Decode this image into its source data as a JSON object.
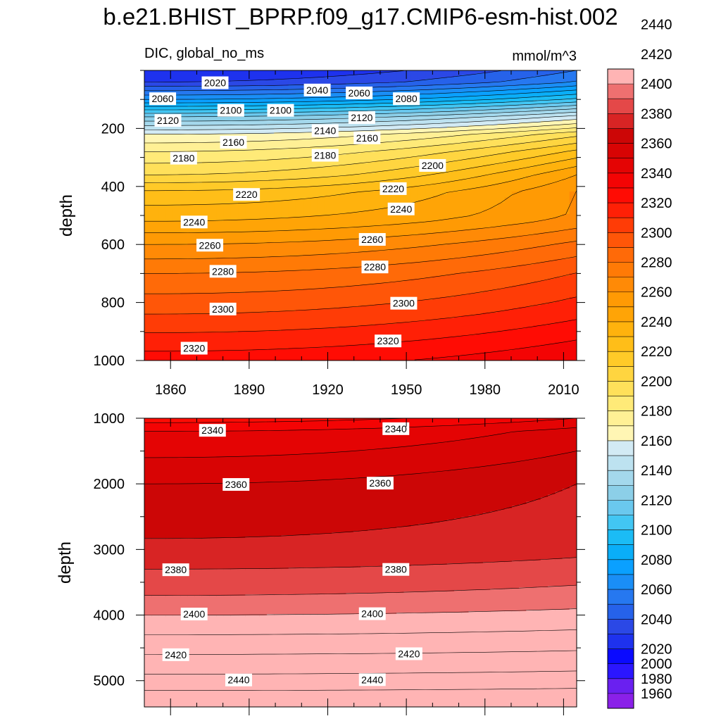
{
  "chart_data": {
    "type": "contour",
    "title": "b.e21.BHIST_BPRP.f09_g17.CMIP6-esm-hist.002",
    "left_subtitle": "DIC, global_no_ms",
    "right_subtitle": "mmol/m^3",
    "xlabel": "",
    "ylabel": "depth",
    "x_range": [
      1850,
      2015
    ],
    "x_ticks": [
      1860,
      1890,
      1920,
      1950,
      1980,
      2010
    ],
    "colorbar": {
      "levels": [
        1960,
        1980,
        2000,
        2020,
        2040,
        2060,
        2080,
        2100,
        2120,
        2140,
        2160,
        2180,
        2200,
        2220,
        2240,
        2260,
        2280,
        2300,
        2320,
        2340,
        2360,
        2380,
        2400,
        2420,
        2440
      ],
      "colors": [
        "#8a20e8",
        "#6a20f0",
        "#2b16ff",
        "#0a0aff",
        "#1e32ee",
        "#2b48e6",
        "#2662ea",
        "#2678f0",
        "#1a8ef6",
        "#0aa0ff",
        "#0aaef8",
        "#1bbcf5",
        "#42c6f3",
        "#6ac8ee",
        "#8ccfe8",
        "#a4d8ec",
        "#bde2f0",
        "#d2eaf4",
        "#fff6b4",
        "#fff095",
        "#ffea78",
        "#ffe05a",
        "#ffd540",
        "#ffca28",
        "#ffbe18",
        "#ffb20d",
        "#ffa406",
        "#ff9a04",
        "#ff8a06",
        "#ff7a06",
        "#ff6a08",
        "#ff5608",
        "#ff3c06",
        "#ff2006",
        "#ff0c04",
        "#f40404",
        "#e40404",
        "#d80404",
        "#cc0606",
        "#d82424",
        "#e44848",
        "#ee7070",
        "#ffb4b4"
      ],
      "label_values": [
        1960,
        1980,
        2000,
        2020,
        2040,
        2060,
        2080,
        2100,
        2120,
        2140,
        2160,
        2180,
        2200,
        2220,
        2240,
        2260,
        2280,
        2300,
        2320,
        2340,
        2360,
        2380,
        2400,
        2420,
        2440
      ]
    },
    "panels": [
      {
        "name": "upper",
        "depth_range": [
          0,
          1000
        ],
        "y_ticks": [
          200,
          400,
          600,
          800,
          1000
        ],
        "contour_labels": [
          {
            "value": 2020,
            "x": 1877,
            "depth": 45
          },
          {
            "value": 2040,
            "x": 1916,
            "depth": 70
          },
          {
            "value": 2060,
            "x": 1932,
            "depth": 80
          },
          {
            "value": 2060,
            "x": 1857,
            "depth": 100
          },
          {
            "value": 2080,
            "x": 1950,
            "depth": 100
          },
          {
            "value": 2100,
            "x": 1883,
            "depth": 140
          },
          {
            "value": 2100,
            "x": 1902,
            "depth": 140
          },
          {
            "value": 2120,
            "x": 1859,
            "depth": 175
          },
          {
            "value": 2120,
            "x": 1933,
            "depth": 165
          },
          {
            "value": 2140,
            "x": 1919,
            "depth": 210
          },
          {
            "value": 2160,
            "x": 1884,
            "depth": 250
          },
          {
            "value": 2160,
            "x": 1935,
            "depth": 235
          },
          {
            "value": 2180,
            "x": 1865,
            "depth": 305
          },
          {
            "value": 2180,
            "x": 1919,
            "depth": 295
          },
          {
            "value": 2200,
            "x": 1960,
            "depth": 330
          },
          {
            "value": 2220,
            "x": 1889,
            "depth": 430
          },
          {
            "value": 2220,
            "x": 1945,
            "depth": 410
          },
          {
            "value": 2240,
            "x": 1869,
            "depth": 525
          },
          {
            "value": 2240,
            "x": 1948,
            "depth": 480
          },
          {
            "value": 2260,
            "x": 1875,
            "depth": 605
          },
          {
            "value": 2260,
            "x": 1937,
            "depth": 585
          },
          {
            "value": 2280,
            "x": 1880,
            "depth": 695
          },
          {
            "value": 2280,
            "x": 1938,
            "depth": 680
          },
          {
            "value": 2300,
            "x": 1880,
            "depth": 825
          },
          {
            "value": 2300,
            "x": 1949,
            "depth": 805
          },
          {
            "value": 2320,
            "x": 1869,
            "depth": 960
          },
          {
            "value": 2320,
            "x": 1943,
            "depth": 935
          }
        ]
      },
      {
        "name": "lower",
        "depth_range": [
          1000,
          5400
        ],
        "y_ticks": [
          1000,
          2000,
          3000,
          4000,
          5000
        ],
        "contour_labels": [
          {
            "value": 2340,
            "x": 1876,
            "depth": 1195
          },
          {
            "value": 2340,
            "x": 1946,
            "depth": 1170
          },
          {
            "value": 2360,
            "x": 1885,
            "depth": 2020
          },
          {
            "value": 2360,
            "x": 1940,
            "depth": 2000
          },
          {
            "value": 2380,
            "x": 1862,
            "depth": 3320
          },
          {
            "value": 2380,
            "x": 1946,
            "depth": 3315
          },
          {
            "value": 2400,
            "x": 1869,
            "depth": 3995
          },
          {
            "value": 2400,
            "x": 1937,
            "depth": 3990
          },
          {
            "value": 2420,
            "x": 1862,
            "depth": 4615
          },
          {
            "value": 2420,
            "x": 1951,
            "depth": 4600
          },
          {
            "value": 2440,
            "x": 1886,
            "depth": 5000
          },
          {
            "value": 2440,
            "x": 1937,
            "depth": 4995
          }
        ]
      }
    ]
  }
}
